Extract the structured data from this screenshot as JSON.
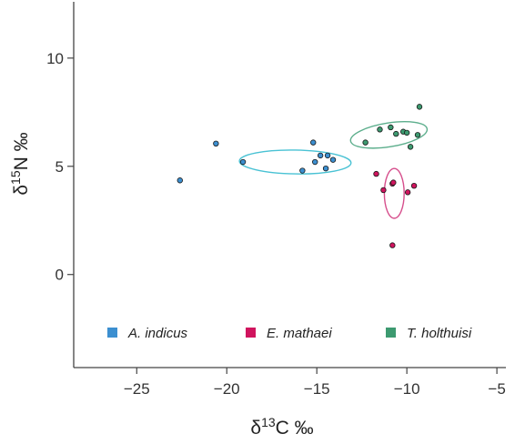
{
  "chart_data": {
    "type": "scatter",
    "title": "",
    "xlabel": {
      "prefix": "δ",
      "sup": "13",
      "suffix": "C ‰"
    },
    "ylabel": {
      "prefix": "δ",
      "sup": "15",
      "suffix": "N ‰"
    },
    "xlim": [
      -28.5,
      -4.5
    ],
    "ylim": [
      -4.3,
      12.6
    ],
    "xticks": [
      -25,
      -20,
      -15,
      -10,
      -5
    ],
    "yticks": [
      0,
      5,
      10
    ],
    "grid": false,
    "legend_position": "bottom",
    "series": [
      {
        "name": "A. indicus",
        "color": "#3c8fd0",
        "ellipse_color": "#49c2d4",
        "points": [
          {
            "x": -22.6,
            "y": 4.35
          },
          {
            "x": -20.6,
            "y": 6.05
          },
          {
            "x": -19.1,
            "y": 5.2
          },
          {
            "x": -15.8,
            "y": 4.8
          },
          {
            "x": -15.2,
            "y": 6.1
          },
          {
            "x": -15.1,
            "y": 5.2
          },
          {
            "x": -14.8,
            "y": 5.5
          },
          {
            "x": -14.5,
            "y": 4.9
          },
          {
            "x": -14.4,
            "y": 5.5
          },
          {
            "x": -14.1,
            "y": 5.3
          }
        ],
        "ellipse": {
          "cx": -16.2,
          "cy": 5.2,
          "rx": 3.1,
          "ry": 0.55,
          "angle": -1
        }
      },
      {
        "name": "E. mathaei",
        "color": "#d0145e",
        "ellipse_color": "#d64e8c",
        "points": [
          {
            "x": -11.7,
            "y": 4.65
          },
          {
            "x": -11.3,
            "y": 3.9
          },
          {
            "x": -10.8,
            "y": 4.2
          },
          {
            "x": -10.75,
            "y": 4.25
          },
          {
            "x": -10.8,
            "y": 1.35
          },
          {
            "x": -9.95,
            "y": 3.8
          },
          {
            "x": -9.6,
            "y": 4.1
          }
        ],
        "ellipse": {
          "cx": -10.7,
          "cy": 3.75,
          "rx": 0.55,
          "ry": 1.15,
          "angle": 0
        }
      },
      {
        "name": "T. holthuisi",
        "color": "#3d9a70",
        "ellipse_color": "#5cae8c",
        "points": [
          {
            "x": -12.3,
            "y": 6.1
          },
          {
            "x": -11.5,
            "y": 6.7
          },
          {
            "x": -10.9,
            "y": 6.8
          },
          {
            "x": -10.6,
            "y": 6.5
          },
          {
            "x": -10.2,
            "y": 6.6
          },
          {
            "x": -10.0,
            "y": 6.55
          },
          {
            "x": -9.8,
            "y": 5.9
          },
          {
            "x": -9.4,
            "y": 6.45
          },
          {
            "x": -9.3,
            "y": 7.75
          }
        ],
        "ellipse": {
          "cx": -11.0,
          "cy": 6.45,
          "rx": 2.15,
          "ry": 0.55,
          "angle": 9
        }
      }
    ]
  }
}
